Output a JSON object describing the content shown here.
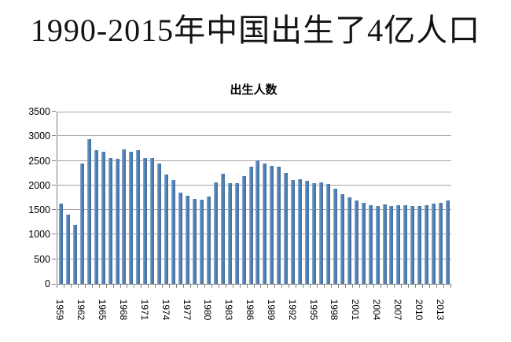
{
  "page": {
    "main_title": "1990-2015年中国出生了4亿人口"
  },
  "chart_data": {
    "type": "bar",
    "title": "出生人数",
    "xlabel": "",
    "ylabel": "",
    "legend_position": "none",
    "grid": true,
    "ylim": [
      0,
      3500
    ],
    "yticks": [
      0,
      500,
      1000,
      1500,
      2000,
      2500,
      3000,
      3500
    ],
    "xtick_labels": [
      "1959",
      "1962",
      "1965",
      "1968",
      "1971",
      "1974",
      "1977",
      "1980",
      "1983",
      "1986",
      "1989",
      "1992",
      "1995",
      "1998",
      "2001",
      "2004",
      "2007",
      "2010",
      "2013"
    ],
    "xtick_label_interval": 3,
    "categories": [
      1959,
      1960,
      1961,
      1962,
      1963,
      1964,
      1965,
      1966,
      1967,
      1968,
      1969,
      1970,
      1971,
      1972,
      1973,
      1974,
      1975,
      1976,
      1977,
      1978,
      1979,
      1980,
      1981,
      1982,
      1983,
      1984,
      1985,
      1986,
      1987,
      1988,
      1989,
      1990,
      1991,
      1992,
      1993,
      1994,
      1995,
      1996,
      1997,
      1998,
      1999,
      2000,
      2001,
      2002,
      2003,
      2004,
      2005,
      2006,
      2007,
      2008,
      2009,
      2010,
      2011,
      2012,
      2013,
      2014
    ],
    "values": [
      1635,
      1402,
      1200,
      2451,
      2934,
      2721,
      2679,
      2554,
      2543,
      2731,
      2690,
      2710,
      2551,
      2550,
      2447,
      2226,
      2102,
      1849,
      1783,
      1733,
      1715,
      1776,
      2064,
      2230,
      2052,
      2050,
      2196,
      2374,
      2508,
      2445,
      2396,
      2374,
      2250,
      2113,
      2120,
      2098,
      2052,
      2057,
      2028,
      1934,
      1827,
      1765,
      1696,
      1641,
      1594,
      1588,
      1612,
      1581,
      1591,
      1604,
      1587,
      1588,
      1600,
      1635,
      1640,
      1687
    ],
    "colors": {
      "bar": "#4f81bd",
      "gridline": "#a3a3a3",
      "axis": "#7f7f7f",
      "text": "#000000",
      "background": "#ffffff"
    }
  }
}
